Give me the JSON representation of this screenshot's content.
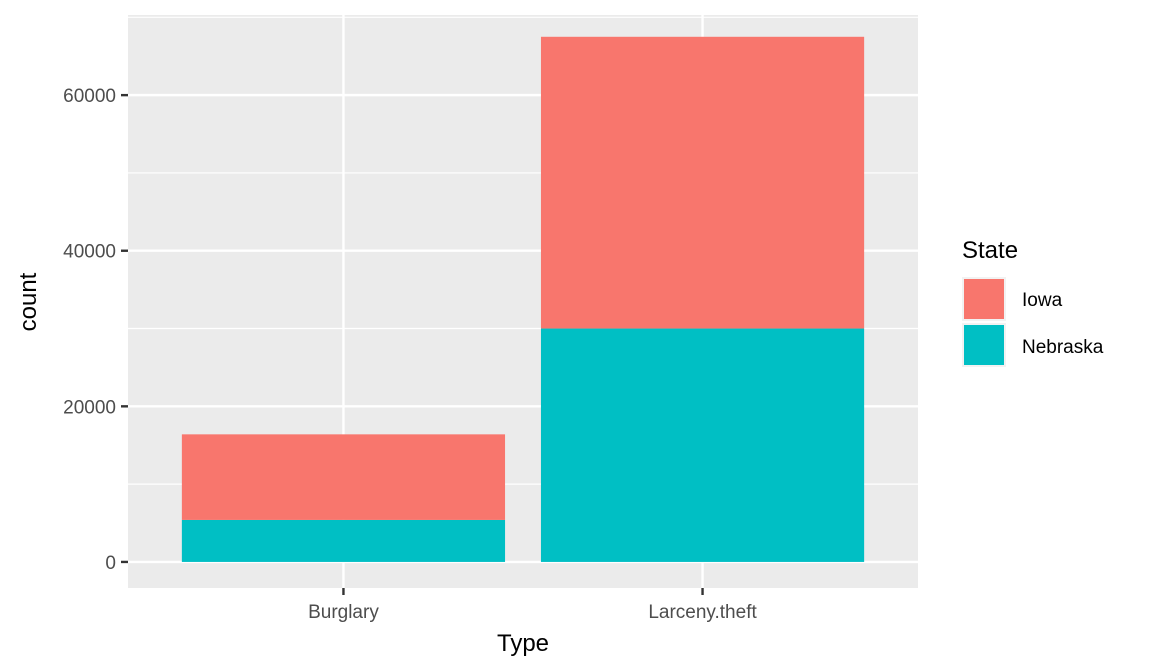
{
  "chart_data": {
    "type": "bar",
    "stacked": true,
    "categories": [
      "Burglary",
      "Larceny.theft"
    ],
    "series": [
      {
        "name": "Iowa",
        "values": [
          11000,
          37500
        ],
        "color": "#F8766D"
      },
      {
        "name": "Nebraska",
        "values": [
          5400,
          30000
        ],
        "color": "#00BFC4"
      }
    ],
    "xlabel": "Type",
    "ylabel": "count",
    "ylim": [
      -3350,
      70300
    ],
    "yticks": [
      0,
      20000,
      40000,
      60000
    ],
    "ytick_labels": [
      "0",
      "20000",
      "40000",
      "60000"
    ],
    "grid": true,
    "panel_background": "#EBEBEB",
    "grid_color": "#FFFFFF",
    "legend": {
      "title": "State",
      "placement": "right",
      "entries": [
        "Iowa",
        "Nebraska"
      ]
    }
  }
}
